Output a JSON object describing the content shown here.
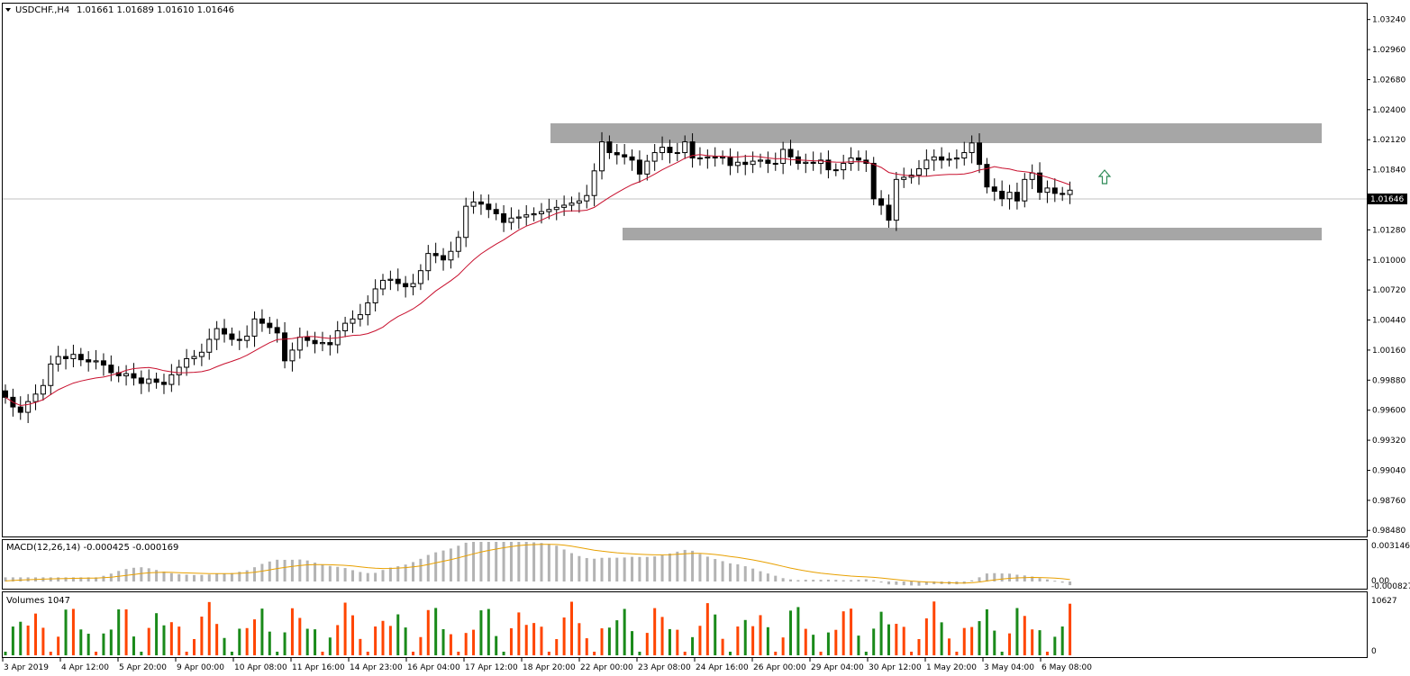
{
  "header": {
    "symbol_label": "USDCHF.,H4",
    "ohlc": "1.01661 1.01689 1.01610 1.01646"
  },
  "macd": {
    "label": "MACD(12,26,14) -0.000425 -0.000169",
    "scale": [
      "0.003146",
      "0.00",
      "-0.000827"
    ]
  },
  "volumes": {
    "label": "Volumes 1047",
    "scale": [
      "10627",
      "0"
    ]
  },
  "price_axis": {
    "labels": [
      "1.03240",
      "1.02960",
      "1.02680",
      "1.02400",
      "1.02120",
      "1.01840",
      "1.01560",
      "1.01280",
      "1.01000",
      "1.00720",
      "1.00440",
      "1.00160",
      "0.99880",
      "0.99600",
      "0.99320",
      "0.99040",
      "0.98760",
      "0.98480"
    ],
    "current_price": "1.01646"
  },
  "time_axis": {
    "labels": [
      "3 Apr 2019",
      "4 Apr 12:00",
      "5 Apr 20:00",
      "9 Apr 00:00",
      "10 Apr 08:00",
      "11 Apr 16:00",
      "14 Apr 23:00",
      "16 Apr 04:00",
      "17 Apr 12:00",
      "18 Apr 20:00",
      "22 Apr 00:00",
      "23 Apr 08:00",
      "24 Apr 16:00",
      "26 Apr 00:00",
      "29 Apr 04:00",
      "30 Apr 12:00",
      "1 May 20:00",
      "3 May 04:00",
      "6 May 08:00"
    ]
  },
  "colors": {
    "ma_line": "#c8102e",
    "zone": "#a6a6a6",
    "macd_hist": "#b3b3b3",
    "macd_signal": "#e8a000",
    "vol_up": "#ff4500",
    "vol_down": "#1a8a1a",
    "arrow": "#2e8b57"
  },
  "chart_data": {
    "type": "candlestick",
    "symbol": "USDCHF.",
    "timeframe": "H4",
    "y_range": [
      0.9844,
      1.0338
    ],
    "zones": [
      {
        "from": 1.0218,
        "to": 1.0236
      },
      {
        "from": 1.0127,
        "to": 1.0139
      }
    ],
    "current_price": 1.01646,
    "close": [
      0.9972,
      0.9963,
      0.9958,
      0.9968,
      0.9975,
      0.9983,
      1.0003,
      1.001,
      1.0008,
      1.0012,
      1.0007,
      1.0005,
      1.0006,
      1.0002,
      0.9995,
      0.9992,
      0.9994,
      0.999,
      0.9985,
      0.9989,
      0.9986,
      0.9984,
      0.9993,
      1.0,
      1.0008,
      1.001,
      1.0014,
      1.0026,
      1.0036,
      1.0031,
      1.0026,
      1.0025,
      1.0029,
      1.0045,
      1.0041,
      1.0037,
      1.0032,
      1.0006,
      1.0016,
      1.0028,
      1.0025,
      1.0022,
      1.0023,
      1.0021,
      1.0034,
      1.0041,
      1.0045,
      1.0049,
      1.006,
      1.0073,
      1.0081,
      1.0082,
      1.0078,
      1.0075,
      1.0078,
      1.009,
      1.0106,
      1.0104,
      1.01,
      1.0108,
      1.0121,
      1.015,
      1.0154,
      1.0152,
      1.0147,
      1.0143,
      1.0135,
      1.0139,
      1.014,
      1.0142,
      1.0143,
      1.0145,
      1.0147,
      1.0149,
      1.0151,
      1.0153,
      1.0155,
      1.016,
      1.0183,
      1.021,
      1.02,
      1.0198,
      1.0196,
      1.0193,
      1.018,
      1.0192,
      1.02,
      1.0205,
      1.02,
      1.02,
      1.021,
      1.0195,
      1.0195,
      1.0196,
      1.0195,
      1.0196,
      1.0188,
      1.0191,
      1.0189,
      1.0192,
      1.0193,
      1.019,
      1.019,
      1.0203,
      1.0196,
      1.019,
      1.0191,
      1.019,
      1.0193,
      1.0184,
      1.0184,
      1.019,
      1.0195,
      1.0193,
      1.019,
      1.0157,
      1.0151,
      1.0137,
      1.0175,
      1.0177,
      1.0179,
      1.0185,
      1.0193,
      1.0196,
      1.0193,
      1.0194,
      1.0195,
      1.02,
      1.0209,
      1.0189,
      1.0168,
      1.0164,
      1.0157,
      1.0163,
      1.0155,
      1.0175,
      1.0181,
      1.0163,
      1.0167,
      1.0162,
      1.0161,
      1.0165
    ]
  }
}
